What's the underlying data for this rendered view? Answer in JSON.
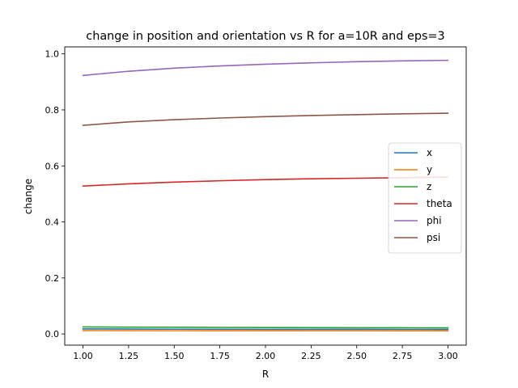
{
  "chart_data": {
    "type": "line",
    "title": "change in position and orientation vs R for a=10R and eps=3",
    "xlabel": "R",
    "ylabel": "change",
    "xlim": [
      0.9,
      3.1
    ],
    "ylim": [
      -0.04,
      1.025
    ],
    "xticks": [
      1.0,
      1.25,
      1.5,
      1.75,
      2.0,
      2.25,
      2.5,
      2.75,
      3.0
    ],
    "xtick_labels": [
      "1.00",
      "1.25",
      "1.50",
      "1.75",
      "2.00",
      "2.25",
      "2.50",
      "2.75",
      "3.00"
    ],
    "yticks": [
      0.0,
      0.2,
      0.4,
      0.6,
      0.8,
      1.0
    ],
    "ytick_labels": [
      "0.0",
      "0.2",
      "0.4",
      "0.6",
      "0.8",
      "1.0"
    ],
    "grid": false,
    "legend_position": "center-right",
    "x": [
      1.0,
      1.25,
      1.5,
      1.75,
      2.0,
      2.25,
      2.5,
      2.75,
      3.0
    ],
    "series": [
      {
        "name": "x",
        "color": "#1f77b4",
        "values": [
          0.018,
          0.0175,
          0.017,
          0.0168,
          0.0166,
          0.0165,
          0.0164,
          0.0163,
          0.0162
        ]
      },
      {
        "name": "y",
        "color": "#ff7f0e",
        "values": [
          0.012,
          0.0118,
          0.0116,
          0.0114,
          0.0113,
          0.0112,
          0.0112,
          0.0111,
          0.011
        ]
      },
      {
        "name": "z",
        "color": "#2ca02c",
        "values": [
          0.025,
          0.0245,
          0.024,
          0.0235,
          0.023,
          0.0226,
          0.0223,
          0.0221,
          0.022
        ]
      },
      {
        "name": "theta",
        "color": "#d62728",
        "values": [
          0.528,
          0.536,
          0.542,
          0.547,
          0.551,
          0.554,
          0.556,
          0.558,
          0.56
        ]
      },
      {
        "name": "phi",
        "color": "#9467bd",
        "values": [
          0.923,
          0.938,
          0.949,
          0.957,
          0.963,
          0.968,
          0.972,
          0.975,
          0.977
        ]
      },
      {
        "name": "psi",
        "color": "#8c564b",
        "values": [
          0.745,
          0.757,
          0.765,
          0.771,
          0.776,
          0.78,
          0.783,
          0.786,
          0.788
        ]
      }
    ]
  }
}
